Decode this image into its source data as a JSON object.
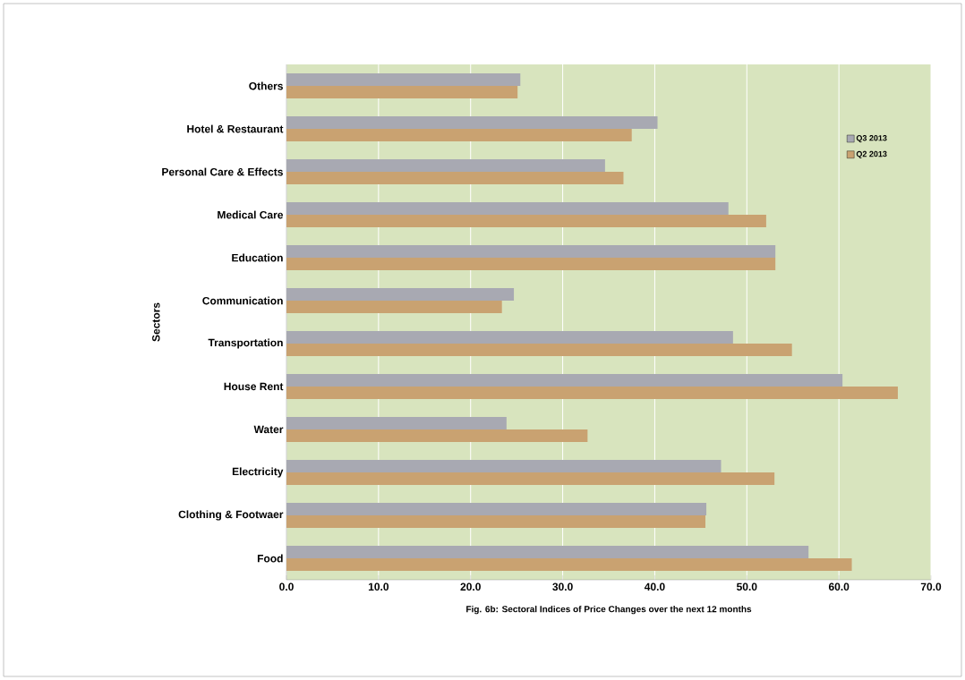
{
  "chart_data": {
    "type": "bar",
    "orientation": "horizontal",
    "title": "Fig. 6b: Sectoral  Indices of Price Changes over the next 12 months",
    "ylabel": "Sectors",
    "categories": [
      "Others",
      "Hotel & Restaurant",
      "Personal Care & Effects",
      "Medical Care",
      "Education",
      "Communication",
      "Transportation",
      "House Rent",
      "Water",
      "Electricity",
      "Clothing & Footwaer",
      "Food"
    ],
    "series": [
      {
        "name": "Q3 2013",
        "color": "#a8a9b2",
        "values": [
          25.4,
          40.3,
          34.6,
          48.0,
          53.1,
          24.7,
          48.5,
          60.4,
          23.9,
          47.2,
          45.6,
          56.7
        ]
      },
      {
        "name": "Q2 2013",
        "color": "#c9a271",
        "values": [
          25.1,
          37.5,
          36.6,
          52.1,
          53.1,
          23.4,
          54.9,
          66.4,
          32.7,
          53.0,
          45.5,
          61.4
        ]
      }
    ],
    "xlim": [
      0,
      70
    ],
    "xticks": [
      {
        "value": 0,
        "label": "0.0"
      },
      {
        "value": 10,
        "label": "10.0"
      },
      {
        "value": 20,
        "label": "20.0"
      },
      {
        "value": 30,
        "label": "30.0"
      },
      {
        "value": 40,
        "label": "40.0"
      },
      {
        "value": 50,
        "label": "50.0"
      },
      {
        "value": 60,
        "label": "60.0"
      },
      {
        "value": 70,
        "label": "70.0"
      }
    ],
    "grid": "x",
    "legend": "top right"
  }
}
